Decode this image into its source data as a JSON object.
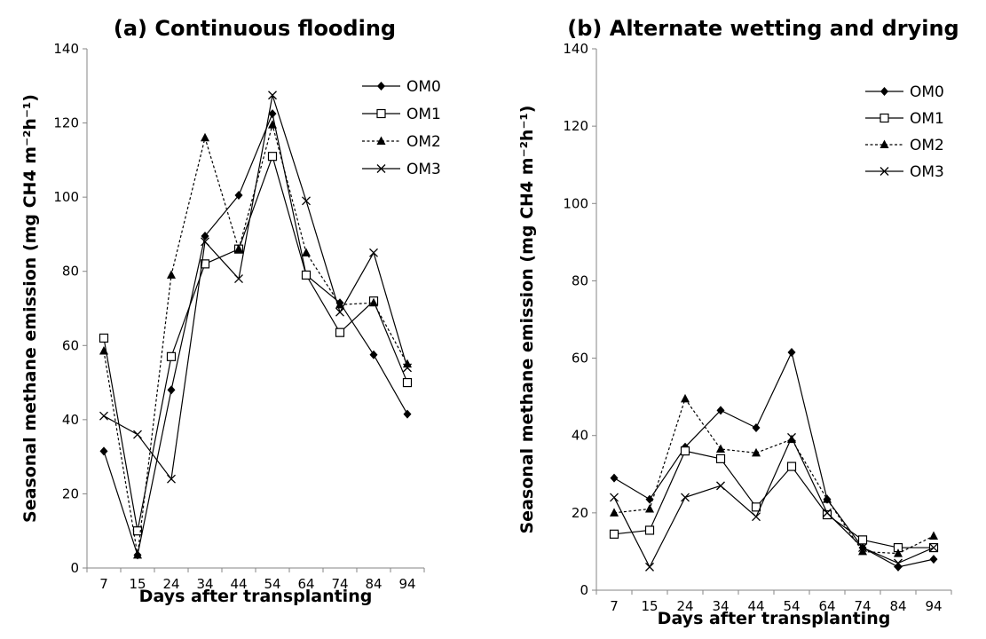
{
  "chart_data": [
    {
      "type": "line",
      "title": "(a) Continuous flooding",
      "xlabel": "Days after transplanting",
      "ylabel": "Seasonal methane emission (mg CH4 m⁻²h⁻¹)",
      "ylim": [
        0,
        140
      ],
      "yticks": [
        0,
        20,
        40,
        60,
        80,
        100,
        120,
        140
      ],
      "categories": [
        "7",
        "15",
        "24",
        "34",
        "44",
        "54",
        "64",
        "74",
        "84",
        "94"
      ],
      "legend_position": "top-right",
      "series": [
        {
          "name": "OM0",
          "marker": "diamond",
          "dash": "solid",
          "values": [
            31.5,
            3.5,
            48,
            89.5,
            100.5,
            122.5,
            79,
            71.5,
            57.5,
            41.5
          ]
        },
        {
          "name": "OM1",
          "marker": "square-open",
          "dash": "solid",
          "values": [
            62,
            10,
            57,
            82,
            86,
            111,
            79,
            63.5,
            72,
            50
          ]
        },
        {
          "name": "OM2",
          "marker": "triangle",
          "dash": "dashed",
          "values": [
            58.5,
            3.5,
            79,
            116,
            86,
            119.5,
            85,
            71,
            71.5,
            55
          ]
        },
        {
          "name": "OM3",
          "marker": "x",
          "dash": "solid",
          "values": [
            41,
            36,
            24,
            88,
            78,
            127.5,
            99,
            69,
            85,
            54
          ]
        }
      ]
    },
    {
      "type": "line",
      "title": "(b) Alternate wetting and drying",
      "xlabel": "Days after transplanting",
      "ylabel": "Seasonal methane emission (mg CH4 m⁻²h⁻¹)",
      "ylim": [
        0,
        140
      ],
      "yticks": [
        0,
        20,
        40,
        60,
        80,
        100,
        120,
        140
      ],
      "categories": [
        "7",
        "15",
        "24",
        "34",
        "44",
        "54",
        "64",
        "74",
        "84",
        "94"
      ],
      "legend_position": "top-right",
      "series": [
        {
          "name": "OM0",
          "marker": "diamond",
          "dash": "solid",
          "values": [
            29,
            23.5,
            37,
            46.5,
            42,
            61.5,
            23.5,
            11,
            6,
            8
          ]
        },
        {
          "name": "OM1",
          "marker": "square-open",
          "dash": "solid",
          "values": [
            14.5,
            15.5,
            36,
            34,
            21.5,
            32,
            19.5,
            13,
            11,
            11
          ]
        },
        {
          "name": "OM2",
          "marker": "triangle",
          "dash": "dashed",
          "values": [
            20,
            21,
            49.5,
            36.5,
            35.5,
            39,
            23.5,
            10,
            9.5,
            14
          ]
        },
        {
          "name": "OM3",
          "marker": "x",
          "dash": "solid",
          "values": [
            24,
            6,
            24,
            27,
            19,
            39.5,
            20,
            11,
            7,
            11
          ]
        }
      ]
    }
  ]
}
